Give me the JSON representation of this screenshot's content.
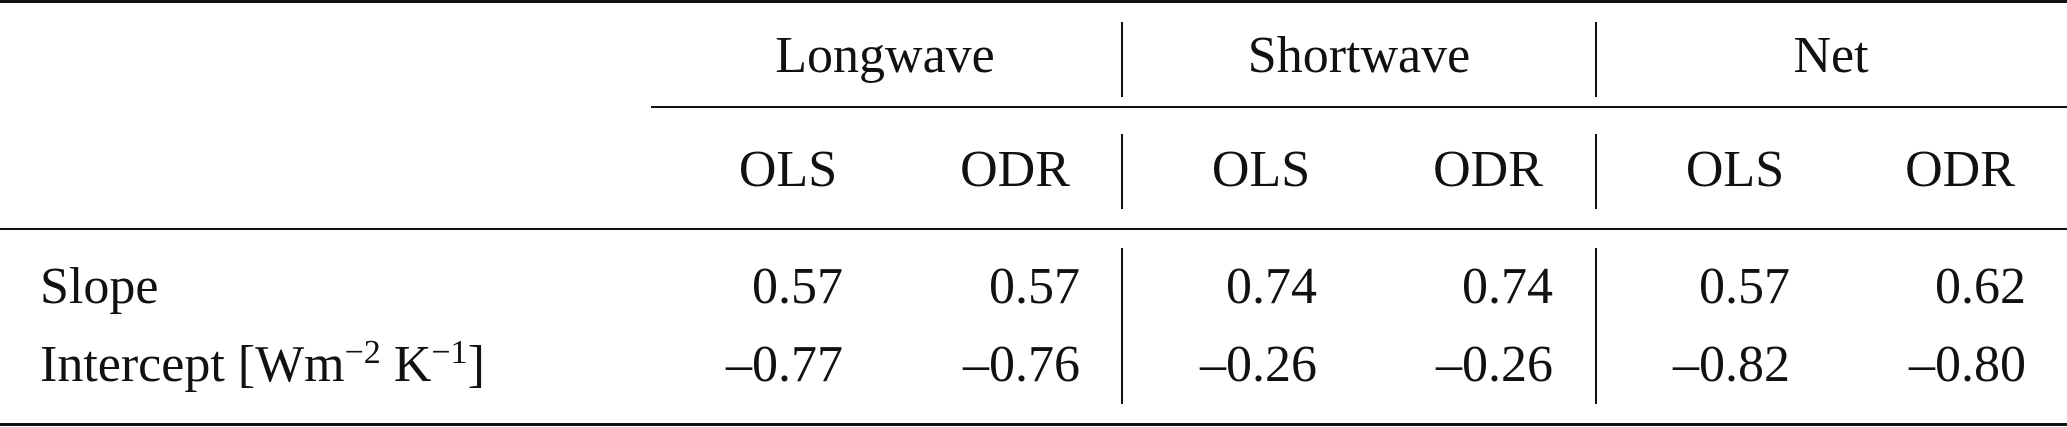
{
  "table": {
    "groups": [
      {
        "label": "Longwave"
      },
      {
        "label": "Shortwave"
      },
      {
        "label": "Net"
      }
    ],
    "subheaders": [
      "OLS",
      "ODR",
      "OLS",
      "ODR",
      "OLS",
      "ODR"
    ],
    "rows": [
      {
        "label": "Slope",
        "values": [
          "0.57",
          "0.57",
          "0.74",
          "0.74",
          "0.57",
          "0.62"
        ]
      },
      {
        "label_main": "Intercept [Wm",
        "label_sup1": "−2",
        "label_mid": " K",
        "label_sup2": "−1",
        "label_end": "]",
        "values": [
          "–0.77",
          "–0.76",
          "–0.26",
          "–0.26",
          "–0.82",
          "–0.80"
        ]
      }
    ]
  }
}
